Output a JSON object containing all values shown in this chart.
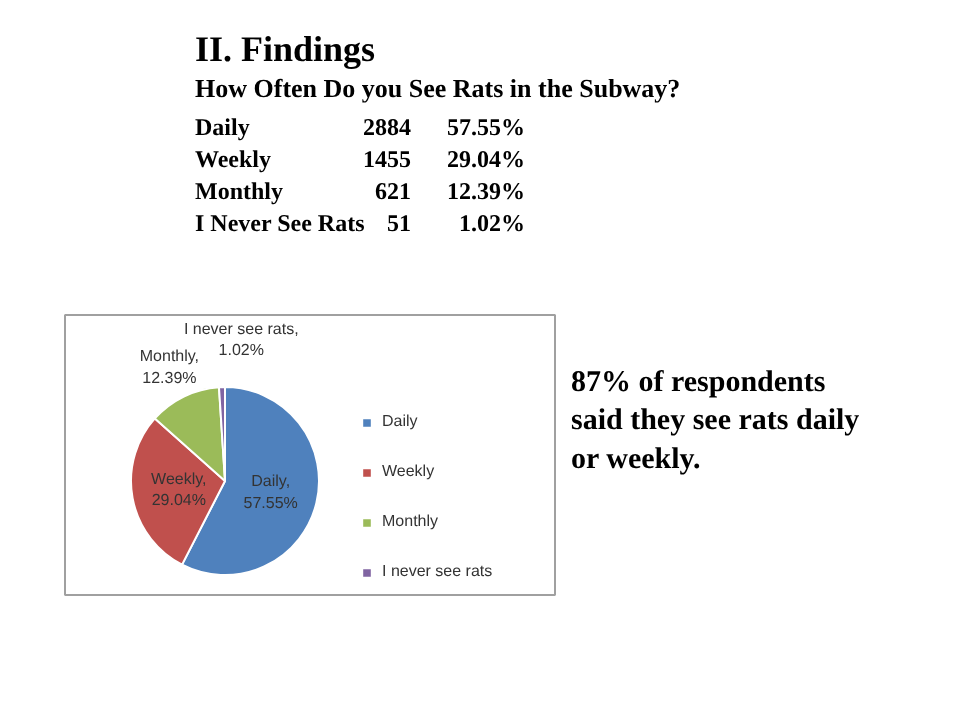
{
  "chart_data": {
    "type": "pie",
    "title": "II.   Findings",
    "subtitle": "How Often Do you See Rats in the Subway?",
    "categories": [
      "Daily",
      "Weekly",
      "Monthly",
      "I never see rats"
    ],
    "values": [
      57.55,
      29.04,
      12.39,
      1.02
    ],
    "colors": [
      "#4f81bd",
      "#c0504d",
      "#9bbb59",
      "#8064a2"
    ],
    "value_labels": [
      "Daily, 57.55%",
      "Weekly, 29.04%",
      "Monthly, 12.39%",
      "I never see rats, 1.02%"
    ],
    "legend": "right",
    "annotations": [
      "Daily\t2884\t57.55%",
      "Weekly\t1455\t29.04%",
      "Monthly\t621\t12.39%",
      "I Never See Rats\t51\t1.02%",
      "87% of respondents\nsaid they see rats daily\nor weekly."
    ]
  }
}
